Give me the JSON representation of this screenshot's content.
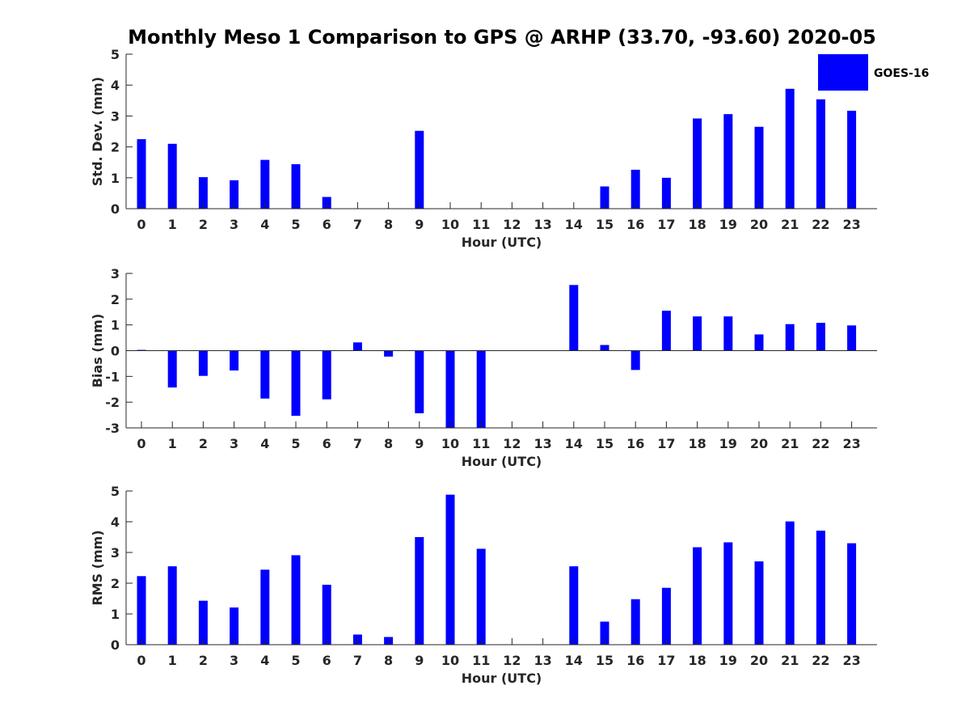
{
  "title": "Monthly Meso 1 Comparison to GPS @ ARHP (33.70, -93.60) 2020-05",
  "colors": {
    "bar": "#0000ff",
    "axis": "#262626",
    "text": "#262626"
  },
  "legend": {
    "label": "GOES-16",
    "placement": "top-right"
  },
  "chart_data": [
    {
      "type": "bar",
      "categories": [
        "0",
        "1",
        "2",
        "3",
        "4",
        "5",
        "6",
        "7",
        "8",
        "9",
        "10",
        "11",
        "12",
        "13",
        "14",
        "15",
        "16",
        "17",
        "18",
        "19",
        "20",
        "21",
        "22",
        "23"
      ],
      "values": [
        2.25,
        2.1,
        1.02,
        0.92,
        1.58,
        1.44,
        0.38,
        0,
        0,
        2.52,
        0,
        0,
        0,
        0,
        0,
        0.72,
        1.26,
        1.0,
        2.92,
        3.06,
        2.65,
        3.88,
        3.54,
        3.17
      ],
      "xlabel": "Hour (UTC)",
      "ylabel": "Std. Dev. (mm)",
      "ylim": [
        0,
        5
      ],
      "yticks": [
        0,
        1,
        2,
        3,
        4,
        5
      ],
      "grid": false
    },
    {
      "type": "bar",
      "categories": [
        "0",
        "1",
        "2",
        "3",
        "4",
        "5",
        "6",
        "7",
        "8",
        "9",
        "10",
        "11",
        "12",
        "13",
        "14",
        "15",
        "16",
        "17",
        "18",
        "19",
        "20",
        "21",
        "22",
        "23"
      ],
      "values": [
        0.03,
        -1.43,
        -0.98,
        -0.77,
        -1.86,
        -2.53,
        -1.89,
        0.32,
        -0.23,
        -2.43,
        -3.0,
        -3.0,
        0,
        0,
        2.55,
        0.22,
        -0.75,
        1.55,
        1.33,
        1.33,
        0.63,
        1.03,
        1.08,
        0.98
      ],
      "xlabel": "Hour (UTC)",
      "ylabel": "Bias (mm)",
      "ylim": [
        -3,
        3
      ],
      "yticks": [
        -3,
        -2,
        -1,
        0,
        1,
        2,
        3
      ],
      "grid": false
    },
    {
      "type": "bar",
      "categories": [
        "0",
        "1",
        "2",
        "3",
        "4",
        "5",
        "6",
        "7",
        "8",
        "9",
        "10",
        "11",
        "12",
        "13",
        "14",
        "15",
        "16",
        "17",
        "18",
        "19",
        "20",
        "21",
        "22",
        "23"
      ],
      "values": [
        2.23,
        2.55,
        1.43,
        1.21,
        2.44,
        2.91,
        1.95,
        0.33,
        0.25,
        3.5,
        4.88,
        3.12,
        0,
        0,
        2.55,
        0.75,
        1.48,
        1.85,
        3.17,
        3.33,
        2.71,
        4.01,
        3.71,
        3.3
      ],
      "xlabel": "Hour (UTC)",
      "ylabel": "RMS (mm)",
      "ylim": [
        0,
        5
      ],
      "yticks": [
        0,
        1,
        2,
        3,
        4,
        5
      ],
      "grid": false
    }
  ]
}
